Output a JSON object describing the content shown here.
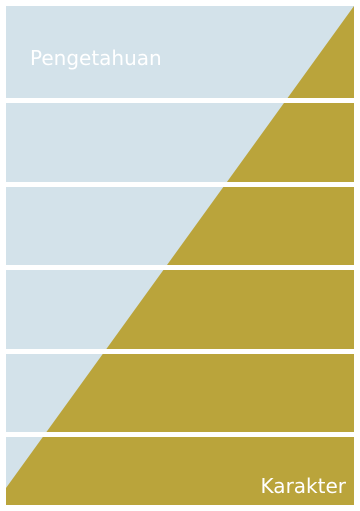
{
  "labels": {
    "top": "Pengetahuan",
    "bottom": "Karakter"
  },
  "colors": {
    "light": "#d3e2ea",
    "dark": "#baa43b",
    "separator": "#ffffff"
  }
}
